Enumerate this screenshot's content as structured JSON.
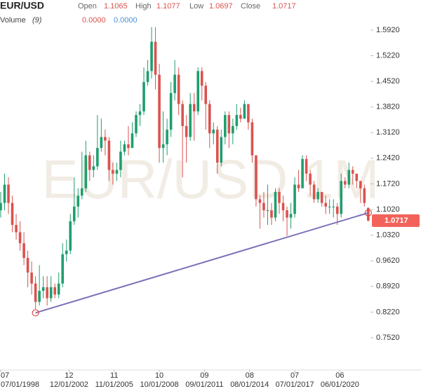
{
  "chart_data": {
    "type": "candlestick",
    "title": "EUR/USD",
    "watermark": "EUR/USD 1M",
    "header_labels": {
      "open": "Open",
      "high": "High",
      "low": "Low",
      "close": "Close"
    },
    "volume_legend": {
      "label": "Volume",
      "period": "(9)",
      "values": [
        "0.0000",
        "0.0000"
      ],
      "colors": [
        "#d9534f",
        "#4a90d9"
      ]
    },
    "up_color": "#1f9e6e",
    "down_color": "#d9534f",
    "x": [
      "1998-07",
      "1998-10",
      "1999-01",
      "1999-04",
      "1999-07",
      "1999-10",
      "2000-01",
      "2000-04",
      "2000-07",
      "2000-10",
      "2001-01",
      "2001-04",
      "2001-07",
      "2001-10",
      "2002-01",
      "2002-04",
      "2002-07",
      "2002-10",
      "2003-01",
      "2003-04",
      "2003-07",
      "2003-10",
      "2004-01",
      "2004-04",
      "2004-07",
      "2004-10",
      "2005-01",
      "2005-04",
      "2005-07",
      "2005-10",
      "2006-01",
      "2006-04",
      "2006-07",
      "2006-10",
      "2007-01",
      "2007-04",
      "2007-07",
      "2007-10",
      "2008-01",
      "2008-04",
      "2008-07",
      "2008-10",
      "2009-01",
      "2009-04",
      "2009-07",
      "2009-10",
      "2010-01",
      "2010-04",
      "2010-07",
      "2010-10",
      "2011-01",
      "2011-04",
      "2011-07",
      "2011-10",
      "2012-01",
      "2012-04",
      "2012-07",
      "2012-10",
      "2013-01",
      "2013-04",
      "2013-07",
      "2013-10",
      "2014-01",
      "2014-04",
      "2014-07",
      "2014-10",
      "2015-01",
      "2015-04",
      "2015-07",
      "2015-10",
      "2016-01",
      "2016-04",
      "2016-07",
      "2016-10",
      "2017-01",
      "2017-04",
      "2017-07",
      "2017-10",
      "2018-01",
      "2018-04",
      "2018-07",
      "2018-10",
      "2019-01",
      "2019-04",
      "2019-07",
      "2019-10",
      "2020-01",
      "2020-04",
      "2020-07",
      "2020-10",
      "2021-01",
      "2021-04",
      "2021-07",
      "2021-10",
      "2022-01",
      "2022-04"
    ],
    "open": [
      1.1,
      1.12,
      1.17,
      1.12,
      1.06,
      1.04,
      1.01,
      0.97,
      0.93,
      0.9,
      0.85,
      0.88,
      0.89,
      0.86,
      0.89,
      0.87,
      0.9,
      0.98,
      0.99,
      1.07,
      1.11,
      1.14,
      1.16,
      1.25,
      1.21,
      1.22,
      1.27,
      1.3,
      1.29,
      1.21,
      1.2,
      1.21,
      1.26,
      1.28,
      1.27,
      1.31,
      1.36,
      1.37,
      1.45,
      1.48,
      1.56,
      1.47,
      1.27,
      1.28,
      1.32,
      1.42,
      1.47,
      1.39,
      1.33,
      1.3,
      1.39,
      1.37,
      1.48,
      1.44,
      1.39,
      1.31,
      1.32,
      1.23,
      1.3,
      1.36,
      1.31,
      1.33,
      1.36,
      1.35,
      1.39,
      1.34,
      1.25,
      1.13,
      1.12,
      1.1,
      1.1,
      1.08,
      1.15,
      1.12,
      1.1,
      1.08,
      1.09,
      1.17,
      1.16,
      1.24,
      1.2,
      1.17,
      1.13,
      1.15,
      1.12,
      1.11,
      1.11,
      1.11,
      1.09,
      1.18,
      1.17,
      1.21,
      1.2,
      1.18,
      1.16,
      1.1065
    ],
    "high": [
      1.15,
      1.2,
      1.19,
      1.14,
      1.09,
      1.07,
      1.04,
      0.99,
      0.96,
      0.92,
      0.95,
      0.92,
      0.92,
      0.92,
      0.9,
      0.93,
      1.01,
      1.02,
      1.09,
      1.19,
      1.16,
      1.26,
      1.29,
      1.26,
      1.25,
      1.36,
      1.35,
      1.32,
      1.3,
      1.23,
      1.23,
      1.29,
      1.29,
      1.33,
      1.34,
      1.37,
      1.39,
      1.49,
      1.51,
      1.6,
      1.6,
      1.5,
      1.37,
      1.35,
      1.45,
      1.51,
      1.49,
      1.4,
      1.36,
      1.42,
      1.42,
      1.49,
      1.49,
      1.45,
      1.4,
      1.34,
      1.33,
      1.32,
      1.37,
      1.37,
      1.35,
      1.39,
      1.38,
      1.4,
      1.39,
      1.35,
      1.25,
      1.14,
      1.15,
      1.17,
      1.12,
      1.16,
      1.16,
      1.14,
      1.11,
      1.12,
      1.19,
      1.21,
      1.25,
      1.25,
      1.21,
      1.18,
      1.16,
      1.15,
      1.14,
      1.13,
      1.13,
      1.12,
      1.2,
      1.19,
      1.23,
      1.22,
      1.2,
      1.18,
      1.17,
      1.1077
    ],
    "low": [
      1.08,
      1.1,
      1.09,
      1.04,
      1.02,
      0.99,
      0.95,
      0.89,
      0.87,
      0.83,
      0.84,
      0.86,
      0.84,
      0.85,
      0.86,
      0.86,
      0.89,
      0.96,
      0.98,
      1.06,
      1.08,
      1.13,
      1.15,
      1.18,
      1.19,
      1.21,
      1.26,
      1.25,
      1.18,
      1.17,
      1.18,
      1.19,
      1.25,
      1.25,
      1.28,
      1.3,
      1.33,
      1.36,
      1.44,
      1.46,
      1.43,
      1.23,
      1.23,
      1.25,
      1.3,
      1.4,
      1.36,
      1.19,
      1.23,
      1.29,
      1.29,
      1.36,
      1.4,
      1.32,
      1.27,
      1.28,
      1.2,
      1.22,
      1.28,
      1.27,
      1.28,
      1.32,
      1.34,
      1.35,
      1.32,
      1.23,
      1.11,
      1.05,
      1.08,
      1.06,
      1.06,
      1.07,
      1.09,
      1.07,
      1.03,
      1.05,
      1.08,
      1.15,
      1.16,
      1.18,
      1.14,
      1.12,
      1.12,
      1.11,
      1.09,
      1.09,
      1.08,
      1.06,
      1.08,
      1.16,
      1.16,
      1.17,
      1.16,
      1.12,
      1.11,
      1.0697
    ],
    "close": [
      1.12,
      1.17,
      1.12,
      1.06,
      1.04,
      1.01,
      0.97,
      0.93,
      0.9,
      0.85,
      0.88,
      0.89,
      0.86,
      0.89,
      0.87,
      0.9,
      0.98,
      0.99,
      1.07,
      1.11,
      1.14,
      1.16,
      1.25,
      1.21,
      1.22,
      1.27,
      1.3,
      1.29,
      1.21,
      1.2,
      1.21,
      1.26,
      1.28,
      1.27,
      1.31,
      1.36,
      1.37,
      1.45,
      1.48,
      1.56,
      1.47,
      1.27,
      1.28,
      1.32,
      1.42,
      1.47,
      1.39,
      1.33,
      1.3,
      1.39,
      1.37,
      1.48,
      1.44,
      1.39,
      1.31,
      1.32,
      1.23,
      1.3,
      1.36,
      1.31,
      1.33,
      1.36,
      1.35,
      1.39,
      1.34,
      1.25,
      1.13,
      1.12,
      1.1,
      1.1,
      1.08,
      1.15,
      1.12,
      1.1,
      1.08,
      1.09,
      1.17,
      1.16,
      1.24,
      1.2,
      1.17,
      1.13,
      1.15,
      1.12,
      1.11,
      1.11,
      1.11,
      1.09,
      1.18,
      1.17,
      1.21,
      1.2,
      1.18,
      1.16,
      1.12,
      1.0717
    ],
    "ylim": [
      0.664,
      1.674
    ],
    "yticks": [
      {
        "value": 1.592,
        "label": "1.5920"
      },
      {
        "value": 1.522,
        "label": "1.5220"
      },
      {
        "value": 1.452,
        "label": "1.4520"
      },
      {
        "value": 1.382,
        "label": "1.3820"
      },
      {
        "value": 1.312,
        "label": "1.3120"
      },
      {
        "value": 1.242,
        "label": "1.2420"
      },
      {
        "value": 1.172,
        "label": "1.1720"
      },
      {
        "value": 1.102,
        "label": "1.1020"
      },
      {
        "value": 1.032,
        "label": "1.0320"
      },
      {
        "value": 0.962,
        "label": "0.9620"
      },
      {
        "value": 0.892,
        "label": "0.8920"
      },
      {
        "value": 0.822,
        "label": "0.8220"
      },
      {
        "value": 0.752,
        "label": "0.7520"
      }
    ],
    "xticks": [
      {
        "value": "1998-07",
        "label": "07/01/1998"
      },
      {
        "value": "2002-12",
        "label": "12/01/2002"
      },
      {
        "value": "2005-11",
        "label": "11/01/2005"
      },
      {
        "value": "2008-10",
        "label": "10/01/2008"
      },
      {
        "value": "2011-09",
        "label": "09/01/2011"
      },
      {
        "value": "2014-08",
        "label": "08/01/2014"
      },
      {
        "value": "2017-07",
        "label": "07/01/2017"
      },
      {
        "value": "2020-06",
        "label": "06/01/2020"
      }
    ],
    "xtick_months": [
      "07",
      "12",
      "11",
      "10",
      "09",
      "08",
      "07",
      "06"
    ],
    "trendline": {
      "color": "#7a72b8",
      "start": {
        "x": "2000-10",
        "y": 0.82
      },
      "end": {
        "x": "2022-04",
        "y": 1.093
      }
    },
    "last_price_color": "#f2625a"
  }
}
